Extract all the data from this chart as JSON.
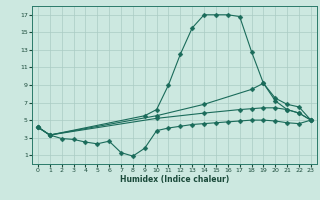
{
  "xlabel": "Humidex (Indice chaleur)",
  "bg_color": "#cce8e0",
  "grid_color": "#aaccc4",
  "line_color": "#1a6b5a",
  "xlim": [
    -0.5,
    23.5
  ],
  "ylim": [
    0,
    18
  ],
  "xticks": [
    0,
    1,
    2,
    3,
    4,
    5,
    6,
    7,
    8,
    9,
    10,
    11,
    12,
    13,
    14,
    15,
    16,
    17,
    18,
    19,
    20,
    21,
    22,
    23
  ],
  "yticks": [
    1,
    3,
    5,
    7,
    9,
    11,
    13,
    15,
    17
  ],
  "line1_x": [
    0,
    1,
    2,
    3,
    4,
    5,
    6,
    7,
    8,
    9,
    10,
    11,
    12,
    13,
    14,
    15,
    16,
    17,
    18,
    19,
    20,
    21,
    22,
    23
  ],
  "line1_y": [
    4.2,
    3.3,
    2.9,
    2.8,
    2.5,
    2.3,
    2.6,
    1.3,
    0.9,
    1.8,
    3.8,
    4.1,
    4.3,
    4.5,
    4.6,
    4.7,
    4.8,
    4.9,
    5.0,
    5.0,
    4.9,
    4.7,
    4.6,
    5.0
  ],
  "line2_x": [
    0,
    1,
    9,
    10,
    11,
    12,
    13,
    14,
    15,
    16,
    17,
    18,
    19,
    20,
    21,
    22,
    23
  ],
  "line2_y": [
    4.2,
    3.3,
    5.5,
    6.2,
    9.0,
    12.5,
    15.5,
    17.0,
    17.0,
    17.0,
    16.8,
    12.8,
    9.2,
    7.2,
    6.2,
    5.8,
    5.0
  ],
  "line3_x": [
    0,
    1,
    10,
    14,
    18,
    19,
    20,
    21,
    22,
    23
  ],
  "line3_y": [
    4.2,
    3.3,
    5.5,
    6.8,
    8.5,
    9.2,
    7.5,
    6.8,
    6.5,
    5.0
  ],
  "line4_x": [
    0,
    1,
    10,
    14,
    17,
    18,
    19,
    20,
    21,
    22,
    23
  ],
  "line4_y": [
    4.2,
    3.3,
    5.2,
    5.8,
    6.2,
    6.3,
    6.4,
    6.4,
    6.2,
    5.8,
    5.0
  ]
}
